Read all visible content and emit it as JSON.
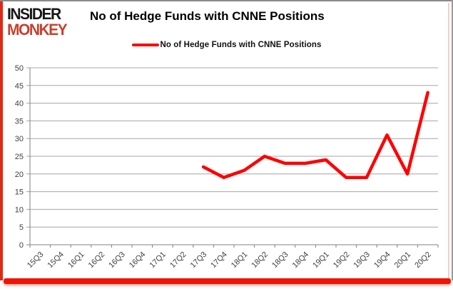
{
  "header": {
    "logo_line1": "INSIDER",
    "logo_line2": "MONKEY",
    "title": "No of Hedge Funds with CNNE Positions"
  },
  "legend": {
    "label": "No of Hedge Funds with CNNE Positions",
    "marker_color": "#ff0000"
  },
  "chart_data": {
    "type": "line",
    "title": "No of Hedge Funds with CNNE Positions",
    "categories": [
      "15Q3",
      "15Q4",
      "16Q1",
      "16Q2",
      "16Q3",
      "16Q4",
      "17Q1",
      "17Q2",
      "17Q3",
      "17Q4",
      "18Q1",
      "18Q2",
      "18Q3",
      "18Q4",
      "19Q1",
      "19Q2",
      "19Q3",
      "19Q4",
      "20Q1",
      "20Q2"
    ],
    "series": [
      {
        "name": "No of Hedge Funds with CNNE Positions",
        "color": "#ff0000",
        "values": [
          null,
          null,
          null,
          null,
          null,
          null,
          null,
          null,
          22,
          19,
          21,
          25,
          23,
          23,
          24,
          19,
          19,
          31,
          20,
          43
        ]
      }
    ],
    "xlabel": "",
    "ylabel": "",
    "ylim": [
      0,
      50
    ],
    "ytick_step": 5,
    "grid": true,
    "legend_position": "top-center"
  },
  "colors": {
    "line": "#ff0000",
    "gridline": "#a6a6a6",
    "axis": "#808080",
    "tick_label": "#3f3f3f",
    "logo_black": "#171717",
    "logo_red": "#c8402e",
    "frame_red": "#ee1505",
    "frame_gray": "#8a8a8a"
  }
}
